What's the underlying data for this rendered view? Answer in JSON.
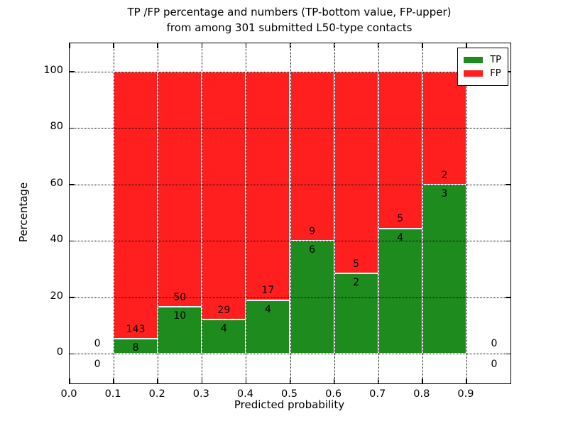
{
  "figure": {
    "title_line1": "TP /FP percentage and numbers (TP-bottom value, FP-upper)",
    "title_line2": "from among 301 submitted L50-type contacts",
    "xlabel": "Predicted probability",
    "ylabel": "Percentage"
  },
  "legend": {
    "position": "upper right",
    "items": [
      {
        "label": "TP",
        "color": "#1e8b1e"
      },
      {
        "label": "FP",
        "color": "#ff1f1f"
      }
    ]
  },
  "chart_data": {
    "type": "bar",
    "stacked": true,
    "title": "TP /FP percentage and numbers (TP-bottom value, FP-upper) from among 301 submitted L50-type contacts",
    "xlabel": "Predicted probability",
    "ylabel": "Percentage",
    "xlim": [
      0.0,
      1.0
    ],
    "ylim": [
      -10.5,
      110
    ],
    "grid": true,
    "total_contacts": 301,
    "xticks": {
      "values": [
        0.0,
        0.1,
        0.2,
        0.3,
        0.4,
        0.5,
        0.6,
        0.7,
        0.8,
        0.9
      ],
      "labels": [
        "0.0",
        "0.1",
        "0.2",
        "0.3",
        "0.4",
        "0.5",
        "0.6",
        "0.7",
        "0.8",
        "0.9"
      ]
    },
    "yticks": {
      "values": [
        0,
        20,
        40,
        60,
        80,
        100
      ],
      "labels": [
        "0",
        "20",
        "40",
        "60",
        "80",
        "100"
      ]
    },
    "series": [
      {
        "name": "TP",
        "color": "#1e8b1e"
      },
      {
        "name": "FP",
        "color": "#ff1f1f"
      }
    ],
    "bins": [
      {
        "range": [
          0.0,
          0.1
        ],
        "tp_count": 0,
        "fp_count": 0,
        "tp_pct": null,
        "fp_pct": null
      },
      {
        "range": [
          0.1,
          0.2
        ],
        "tp_count": 8,
        "fp_count": 143,
        "tp_pct": 5.3,
        "fp_pct": 94.7
      },
      {
        "range": [
          0.2,
          0.3
        ],
        "tp_count": 10,
        "fp_count": 50,
        "tp_pct": 16.67,
        "fp_pct": 83.33
      },
      {
        "range": [
          0.3,
          0.4
        ],
        "tp_count": 4,
        "fp_count": 29,
        "tp_pct": 12.12,
        "fp_pct": 87.88
      },
      {
        "range": [
          0.4,
          0.5
        ],
        "tp_count": 4,
        "fp_count": 17,
        "tp_pct": 19.05,
        "fp_pct": 80.95
      },
      {
        "range": [
          0.5,
          0.6
        ],
        "tp_count": 6,
        "fp_count": 9,
        "tp_pct": 40.0,
        "fp_pct": 60.0
      },
      {
        "range": [
          0.6,
          0.7
        ],
        "tp_count": 2,
        "fp_count": 5,
        "tp_pct": 28.57,
        "fp_pct": 71.43
      },
      {
        "range": [
          0.7,
          0.8
        ],
        "tp_count": 4,
        "fp_count": 5,
        "tp_pct": 44.44,
        "fp_pct": 55.56
      },
      {
        "range": [
          0.8,
          0.9
        ],
        "tp_count": 3,
        "fp_count": 2,
        "tp_pct": 60.0,
        "fp_pct": 40.0
      },
      {
        "range": [
          0.9,
          1.0
        ],
        "tp_count": 0,
        "fp_count": 0,
        "tp_pct": null,
        "fp_pct": null
      }
    ]
  }
}
